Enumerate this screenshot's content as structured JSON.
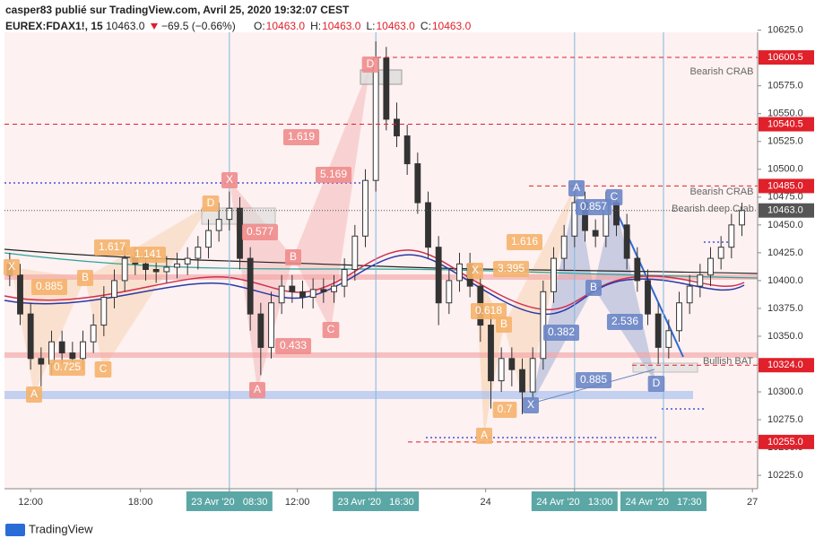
{
  "header": {
    "author_line": "casper83 publié sur TradingView.com, Avril 25, 2020 19:32:07 CEST",
    "symbol": "EUREX:FDAX1!, 15",
    "last": "10463.0",
    "change": "−69.5 (−0.66%)",
    "ohlc": [
      {
        "label": "O:",
        "value": "10463.0"
      },
      {
        "label": "H:",
        "value": "10463.0"
      },
      {
        "label": "L:",
        "value": "10463.0"
      },
      {
        "label": "C:",
        "value": "10463.0"
      }
    ]
  },
  "footer": "TradingView",
  "chart_data": {
    "type": "candlestick",
    "up_color": "#ffffff",
    "down_color": "#333333",
    "open": [
      10415,
      10405,
      10370,
      10330,
      10325,
      10345,
      10335,
      10330,
      10345,
      10360,
      10385,
      10400,
      10420,
      10415,
      10410,
      10408,
      10412,
      10415,
      10420,
      10430,
      10445,
      10455,
      10465,
      10420,
      10370,
      10340,
      10380,
      10395,
      10390,
      10385,
      10392,
      10390,
      10395,
      10410,
      10440,
      10490,
      10600,
      10545,
      10530,
      10505,
      10470,
      10430,
      10380,
      10400,
      10415,
      10395,
      10360,
      10310,
      10330,
      10320,
      10300,
      10330,
      10390,
      10420,
      10440,
      10470,
      10445,
      10440,
      10470,
      10450,
      10420,
      10400,
      10370,
      10340,
      10355,
      10380,
      10395,
      10405,
      10420,
      10430,
      10450
    ],
    "high": [
      10425,
      10415,
      10380,
      10340,
      10355,
      10355,
      10345,
      10355,
      10370,
      10395,
      10410,
      10430,
      10430,
      10425,
      10420,
      10422,
      10425,
      10430,
      10440,
      10455,
      10470,
      10480,
      10475,
      10430,
      10380,
      10390,
      10405,
      10405,
      10400,
      10402,
      10402,
      10405,
      10420,
      10450,
      10500,
      10615,
      10610,
      10560,
      10540,
      10515,
      10480,
      10440,
      10410,
      10425,
      10425,
      10405,
      10370,
      10340,
      10340,
      10330,
      10340,
      10400,
      10430,
      10450,
      10485,
      10480,
      10455,
      10480,
      10480,
      10460,
      10430,
      10410,
      10380,
      10365,
      10390,
      10405,
      10415,
      10430,
      10440,
      10460,
      10470
    ],
    "low": [
      10395,
      10360,
      10320,
      10305,
      10315,
      10325,
      10318,
      10320,
      10335,
      10350,
      10375,
      10390,
      10405,
      10400,
      10398,
      10398,
      10402,
      10405,
      10410,
      10420,
      10435,
      10445,
      10410,
      10355,
      10315,
      10330,
      10370,
      10380,
      10375,
      10375,
      10380,
      10380,
      10385,
      10400,
      10430,
      10480,
      10535,
      10520,
      10495,
      10460,
      10420,
      10360,
      10370,
      10390,
      10385,
      10345,
      10285,
      10300,
      10305,
      10280,
      10290,
      10320,
      10380,
      10410,
      10430,
      10435,
      10430,
      10430,
      10440,
      10410,
      10390,
      10360,
      10325,
      10330,
      10345,
      10370,
      10385,
      10395,
      10410,
      10420,
      10440
    ],
    "close": [
      10405,
      10370,
      10330,
      10325,
      10345,
      10335,
      10330,
      10345,
      10360,
      10385,
      10400,
      10420,
      10415,
      10410,
      10408,
      10412,
      10415,
      10420,
      10430,
      10445,
      10455,
      10465,
      10420,
      10370,
      10340,
      10380,
      10395,
      10390,
      10385,
      10392,
      10390,
      10395,
      10410,
      10440,
      10490,
      10600,
      10545,
      10530,
      10505,
      10470,
      10430,
      10380,
      10400,
      10415,
      10395,
      10360,
      10310,
      10330,
      10320,
      10300,
      10330,
      10390,
      10420,
      10440,
      10470,
      10445,
      10440,
      10470,
      10450,
      10420,
      10400,
      10370,
      10340,
      10355,
      10380,
      10395,
      10405,
      10420,
      10430,
      10450,
      10463
    ],
    "xlim": [
      -0.5,
      71.5
    ],
    "xticks": [
      {
        "value": 2,
        "label": "12:00"
      },
      {
        "value": 12.5,
        "label": "18:00"
      },
      {
        "value": 21,
        "label": "23 Avr '20   08:30"
      },
      {
        "value": 27.5,
        "label": "12:00"
      },
      {
        "value": 35,
        "label": "23 Avr '20   16:30"
      },
      {
        "value": 45.5,
        "label": "24"
      },
      {
        "value": 54,
        "label": "24 Avr '20   13:00"
      },
      {
        "value": 62.5,
        "label": "24 Avr '20   17:30"
      },
      {
        "value": 71,
        "label": "27"
      }
    ],
    "highlighted_xticks": [
      2,
      4,
      6,
      7
    ],
    "ylim": [
      10213,
      10636
    ],
    "yticks": [
      {
        "value": 10225,
        "label": "10225.0"
      },
      {
        "value": 10250,
        "label": "10250.0"
      },
      {
        "value": 10275,
        "label": "10275.0"
      },
      {
        "value": 10300,
        "label": "10300.0"
      },
      {
        "value": 10325,
        "label": "10325.0"
      },
      {
        "value": 10350,
        "label": "10350.0"
      },
      {
        "value": 10375,
        "label": "10375.0"
      },
      {
        "value": 10400,
        "label": "10400.0"
      },
      {
        "value": 10425,
        "label": "10425.0"
      },
      {
        "value": 10450,
        "label": "10450.0"
      },
      {
        "value": 10475,
        "label": "10475.0"
      },
      {
        "value": 10500,
        "label": "10500.0"
      },
      {
        "value": 10525,
        "label": "10525.0"
      },
      {
        "value": 10550,
        "label": "10550.0"
      },
      {
        "value": 10575,
        "label": "10575.0"
      },
      {
        "value": 10600,
        "label": "10600.0"
      },
      {
        "value": 10625,
        "label": "10625.0"
      }
    ],
    "levels": [
      {
        "value": 10600.5,
        "label": "10600.5",
        "color": "#e0202a"
      },
      {
        "value": 10540.5,
        "label": "10540.5",
        "color": "#e0202a"
      },
      {
        "value": 10485,
        "label": "10485.0",
        "color": "#e0202a"
      },
      {
        "value": 10463,
        "label": "10463.0",
        "color": "#555555"
      },
      {
        "value": 10324,
        "label": "10324.0",
        "color": "#e0202a"
      },
      {
        "value": 10255,
        "label": "10255.0",
        "color": "#e0202a"
      }
    ],
    "annotations": [
      "Bearish CRAB",
      "Bearish CRAB",
      "Bearish deep Crab",
      "Bullish BAT"
    ],
    "patterns": [
      {
        "color": "#f5b26b",
        "labels": [
          "X",
          "A",
          "B",
          "C",
          "D",
          "0.885",
          "0.725",
          "1.617",
          "1.141"
        ]
      },
      {
        "color": "#ef8c8c",
        "labels": [
          "X",
          "A",
          "B",
          "C",
          "D",
          "0.577",
          "0.433",
          "1.619",
          "5.169"
        ]
      },
      {
        "color": "#f5b26b",
        "labels": [
          "X",
          "A",
          "B",
          "0.7",
          "0.618",
          "3.395",
          "1.616"
        ]
      },
      {
        "color": "#6b86c6",
        "labels": [
          "X",
          "A",
          "B",
          "C",
          "D",
          "0.382",
          "0.857",
          "0.885",
          "2.536"
        ]
      }
    ]
  }
}
